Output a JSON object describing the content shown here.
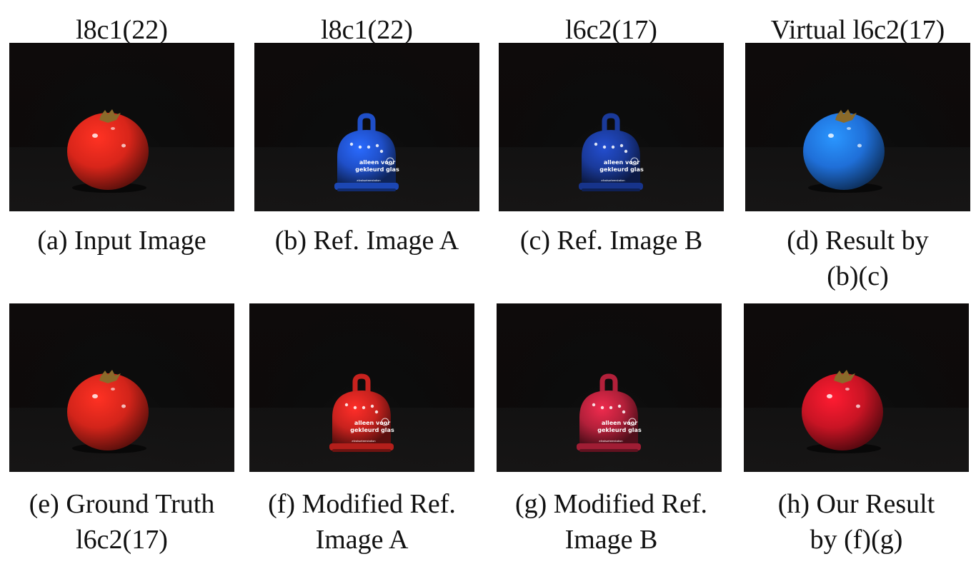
{
  "figure": {
    "panels": [
      {
        "id": "a",
        "top_label": "l8c1(22)",
        "caption": [
          "(a) Input Image"
        ],
        "object": "tomato",
        "color": "#d8251a"
      },
      {
        "id": "b",
        "top_label": "l8c1(22)",
        "caption": [
          "(b) Ref. Image A"
        ],
        "object": "bell",
        "color": "#1f4fc8",
        "bell_text": [
          "alleen voor",
          "gekleurd glas",
          "afvalsorteerstation"
        ]
      },
      {
        "id": "c",
        "top_label": "l6c2(17)",
        "caption": [
          "(c) Ref. Image B"
        ],
        "object": "bell",
        "color": "#1a3a9a",
        "bell_text": [
          "alleen voor",
          "gekleurd glas",
          "afvalsorteerstation"
        ]
      },
      {
        "id": "d",
        "top_label": "Virtual l6c2(17)",
        "caption": [
          "(d) Result by",
          "(b)(c)"
        ],
        "object": "tomato",
        "color": "#1f6fd8"
      },
      {
        "id": "e",
        "top_label": "",
        "caption": [
          "(e) Ground Truth",
          "l6c2(17)"
        ],
        "object": "tomato",
        "color": "#d2241a"
      },
      {
        "id": "f",
        "top_label": "",
        "caption": [
          "(f) Modified Ref.",
          "Image A"
        ],
        "object": "bell",
        "color": "#c8221e",
        "bell_text": [
          "alleen voor",
          "gekleurd glas",
          "afvalsorteerstation"
        ]
      },
      {
        "id": "g",
        "top_label": "",
        "caption": [
          "(g) Modified Ref.",
          "Image B"
        ],
        "object": "bell",
        "color": "#b2203a",
        "bell_text": [
          "alleen voor",
          "gekleurd glas",
          "afvalsorteerstation"
        ]
      },
      {
        "id": "h",
        "top_label": "",
        "caption": [
          "(h) Our Result",
          "by (f)(g)"
        ],
        "object": "tomato",
        "color": "#c81424"
      }
    ]
  }
}
